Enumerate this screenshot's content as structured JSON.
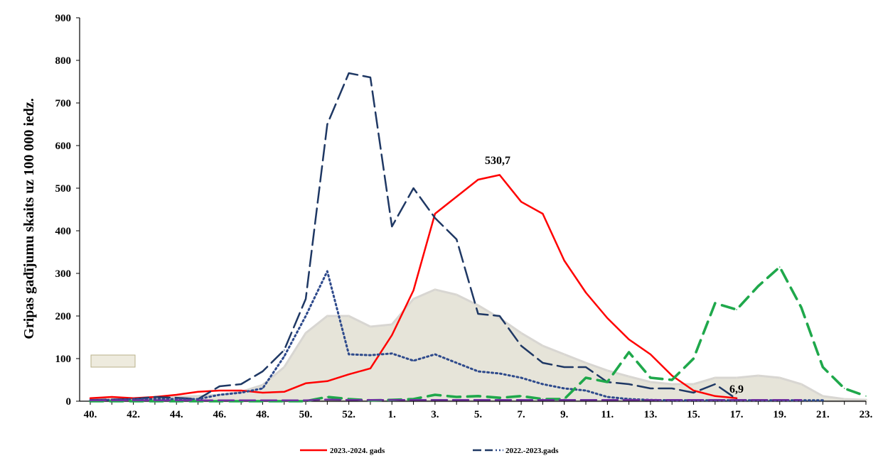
{
  "chart_data": {
    "type": "line",
    "ylabel": "Gripas gadījumu skaits uz 100 000 iedz.",
    "xlabel": "",
    "ylim": [
      0,
      900
    ],
    "yticks": [
      "0",
      "100",
      "200",
      "300",
      "400",
      "500",
      "600",
      "700",
      "800",
      "900"
    ],
    "categories": [
      "40.",
      "41.",
      "42.",
      "43.",
      "44.",
      "45.",
      "46.",
      "47.",
      "48.",
      "49.",
      "50.",
      "51.",
      "52.",
      "53.",
      "1.",
      "2.",
      "3.",
      "4.",
      "5.",
      "6.",
      "7.",
      "8.",
      "9.",
      "10.",
      "11.",
      "12.",
      "13.",
      "14.",
      "15.",
      "16.",
      "17.",
      "18.",
      "19.",
      "20.",
      "21.",
      "22.",
      "23."
    ],
    "xtick_labels": [
      "40.",
      "",
      "42.",
      "",
      "44.",
      "",
      "46.",
      "",
      "48.",
      "",
      "50.",
      "",
      "52.",
      "",
      "1.",
      "",
      "3.",
      "",
      "5.",
      "",
      "7.",
      "",
      "9.",
      "",
      "11.",
      "",
      "13.",
      "",
      "15.",
      "",
      "17.",
      "",
      "19.",
      "",
      "21.",
      "",
      "23."
    ],
    "series": [
      {
        "name": "2023.-2024. gads",
        "color": "#ff0000",
        "style": "solid",
        "values": [
          7,
          10,
          7,
          10,
          15,
          22,
          25,
          25,
          20,
          22,
          42,
          47,
          63,
          77,
          155,
          260,
          440,
          480,
          520,
          531,
          468,
          440,
          330,
          255,
          195,
          145,
          110,
          60,
          25,
          12,
          7,
          null,
          null,
          null,
          null,
          null,
          null
        ]
      },
      {
        "name": "2022.-2023.gads",
        "color": "#1f3864",
        "style": "dash",
        "values": [
          3,
          4,
          5,
          10,
          8,
          5,
          35,
          40,
          70,
          120,
          240,
          650,
          770,
          760,
          410,
          500,
          430,
          380,
          205,
          200,
          130,
          90,
          80,
          80,
          45,
          40,
          30,
          30,
          20,
          40,
          5,
          null,
          null,
          null,
          null,
          null,
          null
        ]
      },
      {
        "name": "",
        "color": "#2e4a8c",
        "style": "dot",
        "values": [
          2,
          3,
          5,
          5,
          5,
          5,
          15,
          20,
          30,
          105,
          200,
          305,
          110,
          108,
          112,
          95,
          110,
          90,
          70,
          65,
          55,
          40,
          30,
          25,
          10,
          5,
          3,
          2,
          2,
          2,
          2,
          2,
          2,
          2,
          2,
          null,
          null
        ]
      },
      {
        "name": "",
        "color": "#1fa84b",
        "style": "dash-heavy",
        "values": [
          0,
          0,
          0,
          0,
          0,
          0,
          0,
          0,
          0,
          0,
          0,
          10,
          5,
          2,
          3,
          5,
          15,
          10,
          12,
          8,
          12,
          5,
          5,
          55,
          45,
          115,
          55,
          50,
          100,
          230,
          215,
          270,
          315,
          220,
          80,
          30,
          12
        ]
      },
      {
        "name": "",
        "color": "#7030a0",
        "style": "dash",
        "values": [
          2,
          2,
          2,
          2,
          2,
          2,
          2,
          2,
          2,
          2,
          2,
          4,
          3,
          3,
          3,
          3,
          3,
          3,
          3,
          3,
          3,
          3,
          3,
          3,
          3,
          3,
          3,
          3,
          3,
          3,
          3,
          3,
          3,
          3,
          null,
          null,
          null
        ]
      },
      {
        "name": "",
        "color": "#e2dfd2",
        "style": "area",
        "values": [
          3,
          5,
          6,
          8,
          10,
          12,
          15,
          22,
          38,
          80,
          160,
          200,
          200,
          175,
          180,
          240,
          262,
          250,
          225,
          195,
          160,
          130,
          110,
          90,
          72,
          58,
          45,
          40,
          40,
          55,
          55,
          60,
          55,
          40,
          12,
          5,
          3
        ]
      }
    ],
    "legend": {
      "placement": "bottom",
      "entries": [
        "2023.-2024. gads",
        "2022.-2023.gads"
      ]
    },
    "annotations": [
      "530,7",
      "6,9"
    ],
    "grid": false
  }
}
